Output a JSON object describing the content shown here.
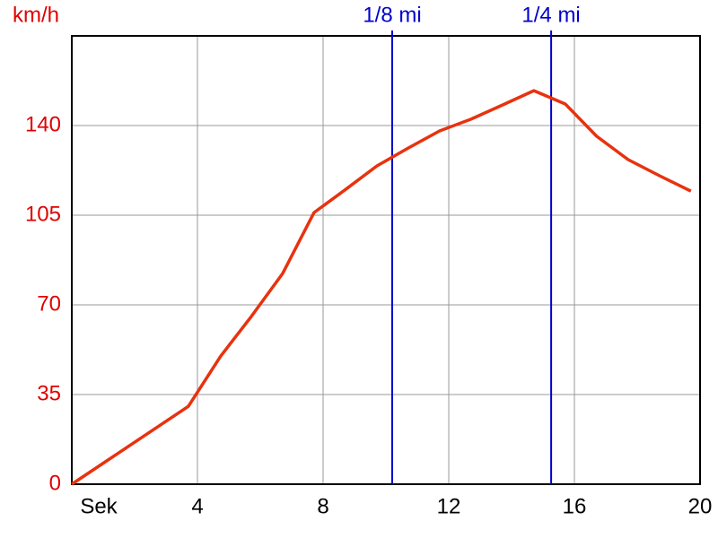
{
  "chart_data": {
    "type": "line",
    "y_label": "km/h",
    "x": [
      0,
      3.71,
      4.74,
      5.71,
      6.71,
      7.71,
      8.71,
      9.71,
      10.71,
      11.71,
      12.71,
      13.71,
      14.71,
      15.71,
      16.71,
      17.71,
      18.71,
      19.71
    ],
    "series": [
      {
        "color": "#e8320e",
        "values": [
          0,
          30.4,
          50,
          65.4,
          82.2,
          106,
          115,
          124.2,
          131.2,
          137.9,
          142.5,
          148,
          153.6,
          148.4,
          135.8,
          126.7,
          120.4,
          114.4
        ]
      }
    ],
    "xlim": [
      0,
      20
    ],
    "ylim": [
      0,
      175
    ],
    "xticks": [
      {
        "value": 0,
        "label": "Sek"
      },
      4,
      8,
      12,
      16,
      20
    ],
    "yticks": [
      0,
      35,
      70,
      105,
      140
    ],
    "grid": true,
    "markers": [
      {
        "label": "1/8 mi",
        "x": 10.2
      },
      {
        "label": "1/4 mi",
        "x": 15.26
      }
    ],
    "marker_color": "#0000d0",
    "y_tick_color": "#e00000"
  }
}
